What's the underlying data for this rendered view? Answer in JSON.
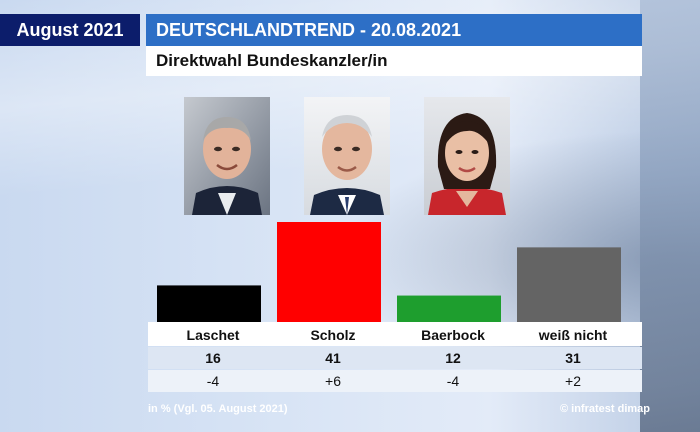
{
  "header": {
    "date_label": "August 2021",
    "title": "DEUTSCHLANDTREND - 20.08.2021",
    "subtitle": "Direktwahl Bundeskanzler/in"
  },
  "footer": {
    "note": "in % (Vgl. 05. August 2021)",
    "source": "© infratest dimap"
  },
  "chart_data": {
    "type": "bar",
    "title": "Direktwahl Bundeskanzler/in",
    "categories": [
      "Laschet",
      "Scholz",
      "Baerbock",
      "weiß nicht"
    ],
    "values": [
      16,
      41,
      12,
      31
    ],
    "changes": [
      "-4",
      "+6",
      "-4",
      "+2"
    ],
    "colors": [
      "#000000",
      "#ff0000",
      "#1e9e2e",
      "#646464"
    ],
    "ylabel": "in %",
    "ylim": [
      0,
      41
    ],
    "grid": false
  }
}
